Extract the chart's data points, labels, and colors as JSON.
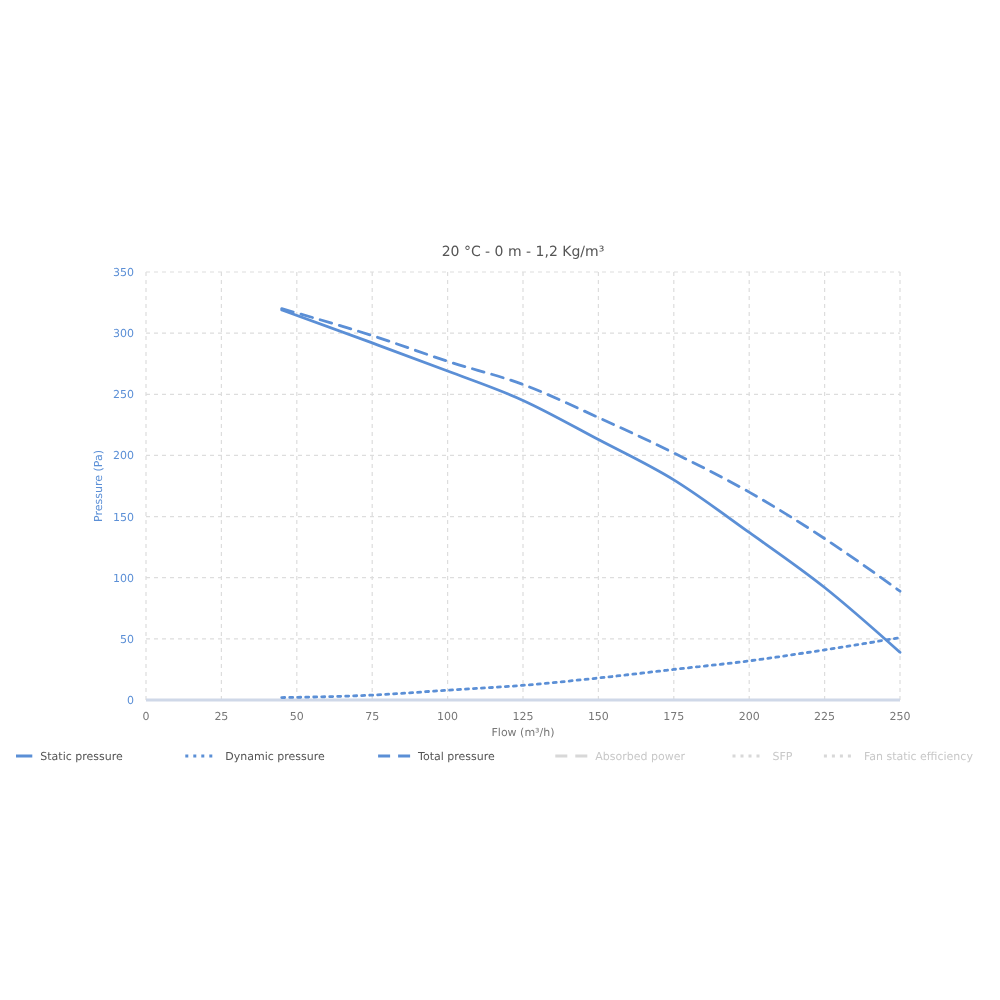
{
  "chart_data": {
    "type": "line",
    "title": "20 °C - 0 m - 1,2 Kg/m³",
    "xlabel": "Flow (m³/h)",
    "ylabel": "Pressure (Pa)",
    "x": [
      45,
      75,
      100,
      125,
      150,
      175,
      200,
      225,
      250
    ],
    "series": [
      {
        "name": "Static pressure",
        "color": "#5b8fd6",
        "line_style": "solid",
        "values": [
          319,
          292,
          269,
          245,
          213,
          180,
          137,
          92,
          39
        ]
      },
      {
        "name": "Dynamic pressure",
        "color": "#5b8fd6",
        "line_style": "dotted",
        "values": [
          2,
          4,
          8,
          12,
          18,
          25,
          32,
          41,
          51
        ]
      },
      {
        "name": "Total pressure",
        "color": "#5b8fd6",
        "line_style": "dashed",
        "values": [
          320,
          298,
          277,
          258,
          231,
          202,
          170,
          132,
          89
        ]
      },
      {
        "name": "Absorbed power",
        "color": "#d8d8d8",
        "line_style": "dashed",
        "values": [
          null,
          null,
          null,
          null,
          null,
          null,
          null,
          null,
          null
        ]
      },
      {
        "name": "SFP",
        "color": "#d8d8d8",
        "line_style": "dotted",
        "values": [
          null,
          null,
          null,
          null,
          null,
          null,
          null,
          null,
          null
        ]
      },
      {
        "name": "Fan static efficiency",
        "color": "#d8d8d8",
        "line_style": "dotted",
        "values": [
          null,
          null,
          null,
          null,
          null,
          null,
          null,
          null,
          null
        ]
      }
    ],
    "xlim": [
      0,
      250
    ],
    "xticks": [
      0,
      25,
      50,
      75,
      100,
      125,
      150,
      175,
      200,
      225,
      250
    ],
    "ylim": [
      0,
      350
    ],
    "yticks": [
      0,
      50,
      100,
      150,
      200,
      250,
      300,
      350
    ],
    "grid": true,
    "legend": "bottom",
    "marker": "none"
  }
}
